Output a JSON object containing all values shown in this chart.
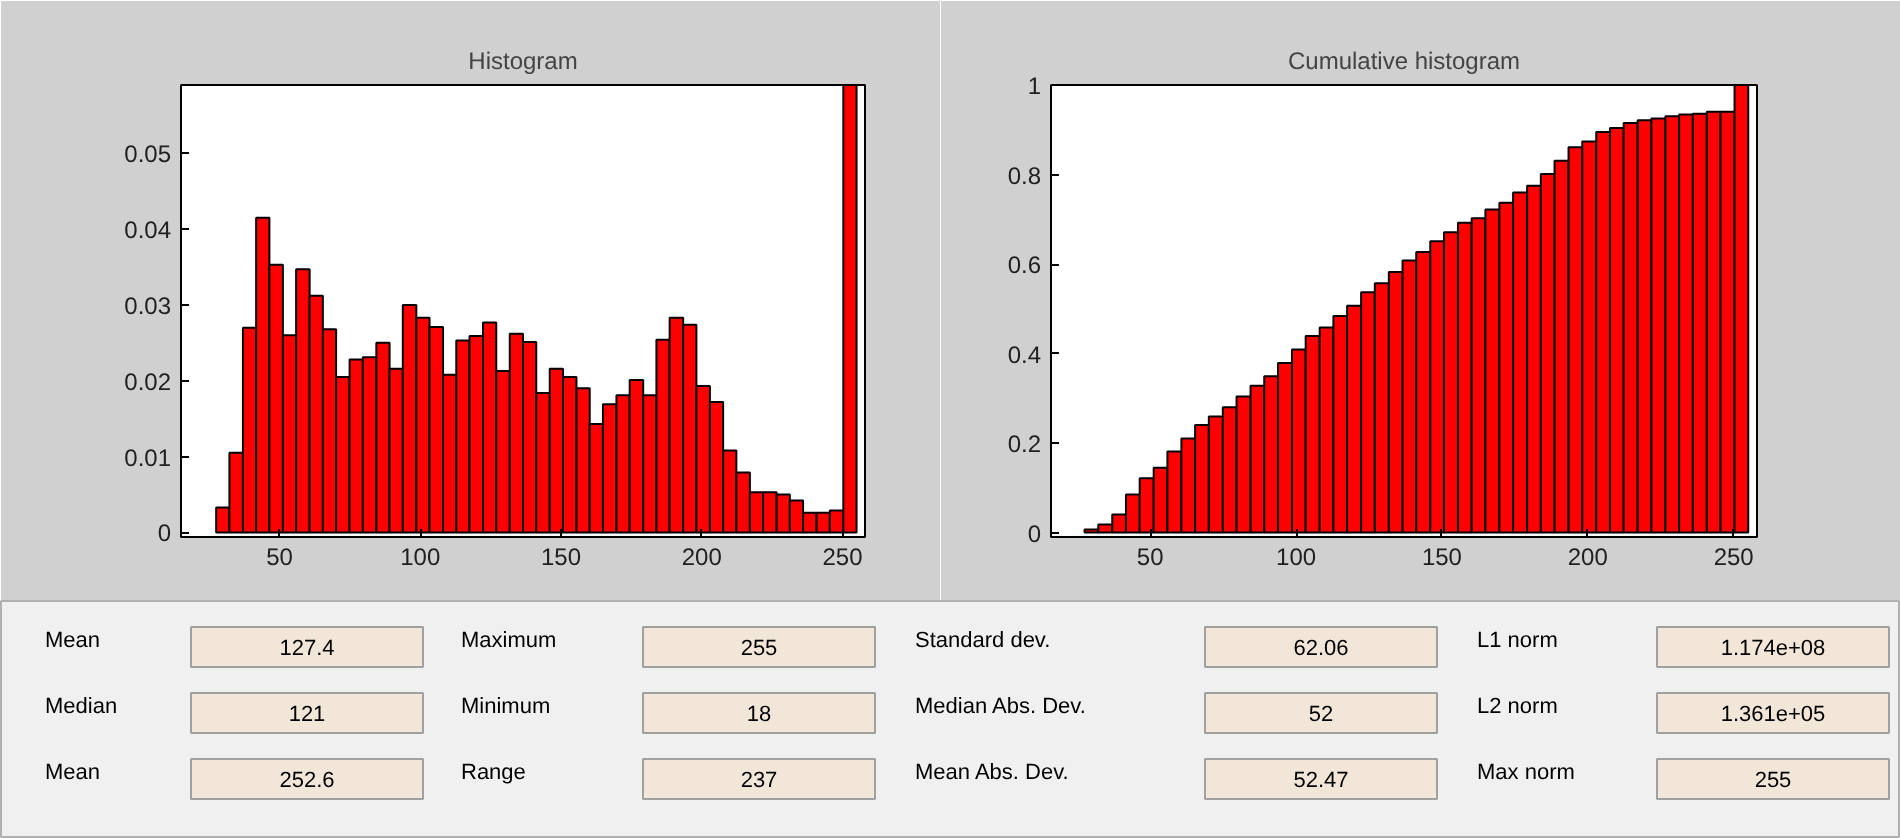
{
  "chart_data": [
    {
      "type": "histogram",
      "title": "Histogram",
      "color": "#ff0000",
      "xlim": [
        15,
        258
      ],
      "ylim": [
        -0.0006,
        0.059
      ],
      "xticks": [
        50,
        100,
        150,
        200,
        250
      ],
      "yticks": [
        0,
        0.01,
        0.02,
        0.03,
        0.04,
        0.05
      ],
      "grid": false,
      "bins": [
        27.5,
        32.2,
        37.0,
        41.7,
        46.4,
        51.2,
        55.9,
        60.7,
        65.4,
        70.1,
        74.9,
        79.6,
        84.4,
        89.1,
        93.8,
        98.6,
        103.3,
        108.1,
        112.8,
        117.5,
        122.3,
        127.0,
        131.8,
        136.5,
        141.2,
        146.0,
        150.7,
        155.5,
        160.2,
        164.9,
        169.7,
        174.4,
        179.2,
        183.9,
        188.6,
        193.4,
        198.1,
        202.9,
        207.6,
        212.3,
        217.1,
        221.8,
        226.6,
        231.3,
        236.0,
        240.8,
        245.5,
        250.3,
        255.0
      ],
      "values": [
        0.0033,
        0.0105,
        0.027,
        0.0415,
        0.0353,
        0.026,
        0.0347,
        0.0312,
        0.0268,
        0.0205,
        0.0228,
        0.0231,
        0.025,
        0.0216,
        0.03,
        0.0283,
        0.0271,
        0.0208,
        0.0253,
        0.0259,
        0.0277,
        0.0213,
        0.0262,
        0.0251,
        0.0184,
        0.0216,
        0.0205,
        0.019,
        0.0143,
        0.0169,
        0.0181,
        0.0201,
        0.0181,
        0.0254,
        0.0283,
        0.0274,
        0.0193,
        0.0172,
        0.0108,
        0.0079,
        0.0053,
        0.0053,
        0.005,
        0.0042,
        0.0026,
        0.0026,
        0.0029,
        0.059
      ]
    },
    {
      "type": "histogram",
      "title": "Cumulative histogram",
      "color": "#ff0000",
      "xlim": [
        16,
        258
      ],
      "ylim": [
        -0.01,
        1
      ],
      "xticks": [
        50,
        100,
        150,
        200,
        250
      ],
      "yticks": [
        0,
        0.2,
        0.4,
        0.6,
        0.8,
        1
      ],
      "grid": false,
      "bins": [
        27.5,
        32.2,
        37.0,
        41.7,
        46.4,
        51.2,
        55.9,
        60.7,
        65.4,
        70.1,
        74.9,
        79.6,
        84.4,
        89.1,
        93.8,
        98.6,
        103.3,
        108.1,
        112.8,
        117.5,
        122.3,
        127.0,
        131.8,
        136.5,
        141.2,
        146.0,
        150.7,
        155.5,
        160.2,
        164.9,
        169.7,
        174.4,
        179.2,
        183.9,
        188.6,
        193.4,
        198.1,
        202.9,
        207.6,
        212.3,
        217.1,
        221.8,
        226.6,
        231.3,
        236.0,
        240.8,
        245.5,
        250.3,
        255.0
      ],
      "values": [
        0.007,
        0.018,
        0.04,
        0.085,
        0.121,
        0.145,
        0.181,
        0.21,
        0.24,
        0.259,
        0.28,
        0.304,
        0.328,
        0.349,
        0.379,
        0.409,
        0.439,
        0.458,
        0.484,
        0.507,
        0.537,
        0.557,
        0.582,
        0.608,
        0.627,
        0.651,
        0.671,
        0.692,
        0.702,
        0.722,
        0.737,
        0.76,
        0.775,
        0.801,
        0.831,
        0.861,
        0.874,
        0.895,
        0.904,
        0.915,
        0.921,
        0.925,
        0.93,
        0.934,
        0.936,
        0.94,
        0.94,
        1.0
      ]
    },
    {
      "type": "other",
      "annotations": [
        "Mean",
        "127.4",
        "Maximum",
        "255",
        "Standard dev.",
        "62.06",
        "L1 norm",
        "1.174e+08",
        "Median",
        "121",
        "Minimum",
        "18",
        "Median Abs. Dev.",
        "52",
        "L2 norm",
        "1.361e+05",
        "Mean",
        "252.6",
        "Range",
        "237",
        "Mean Abs. Dev.",
        "52.47",
        "Max norm",
        "255"
      ]
    }
  ]
}
